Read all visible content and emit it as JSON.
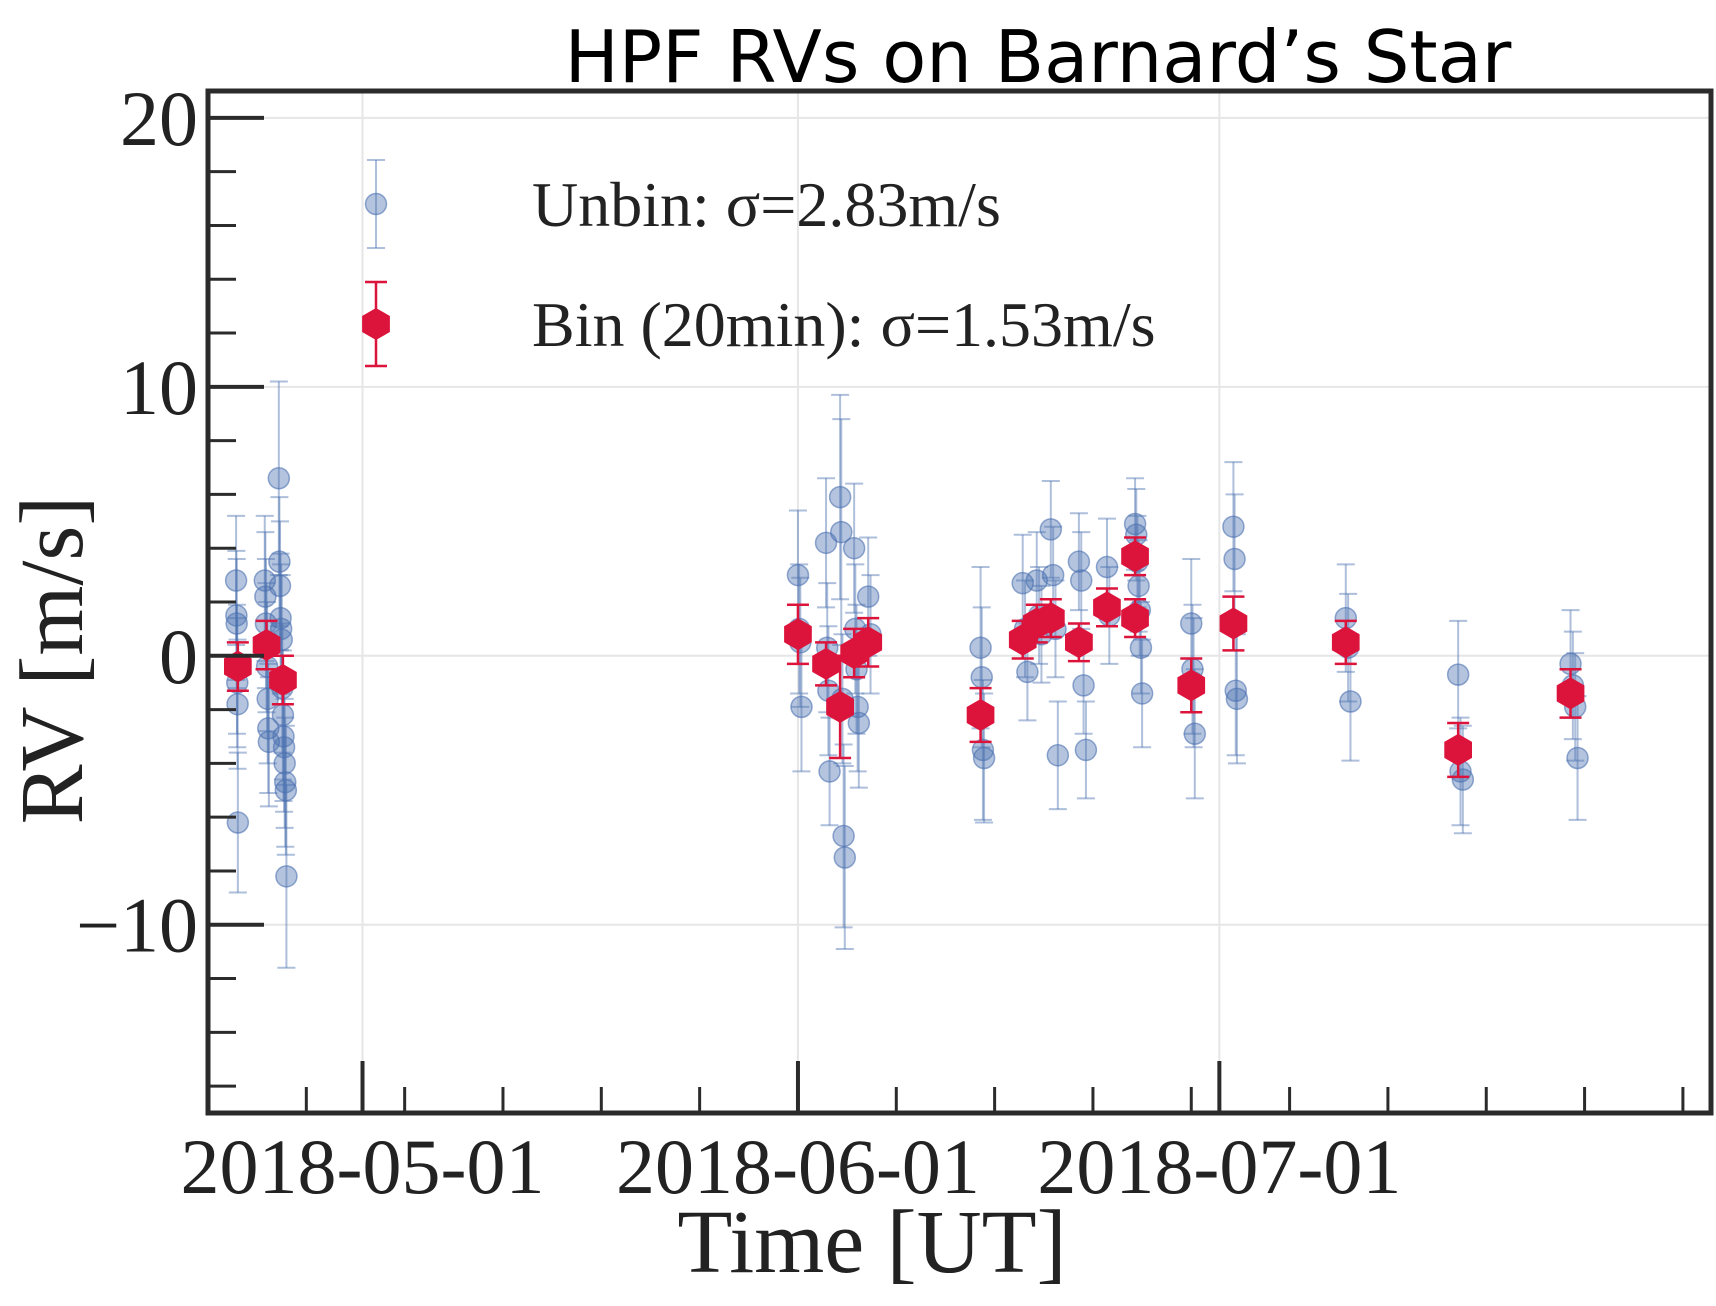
{
  "chart_data": {
    "type": "scatter",
    "title": "HPF RVs on Barnard’s Star",
    "xlabel": "Time [UT]",
    "ylabel": "RV [m/s]",
    "x_type": "date",
    "xlim": [
      "2018-04-20",
      "2018-08-05"
    ],
    "ylim": [
      -17,
      21
    ],
    "grid": true,
    "legend_position": "top-left",
    "x_ticks": [
      "2018-05-01",
      "2018-06-01",
      "2018-07-01"
    ],
    "y_ticks": [
      20,
      10,
      0,
      -10
    ],
    "y_tick_labels": [
      "20",
      "10",
      "0",
      "−10"
    ],
    "x_minor_ticks": [
      "2018-04-20",
      "2018-04-27",
      "2018-05-04",
      "2018-05-11",
      "2018-05-18",
      "2018-05-25",
      "2018-06-08",
      "2018-06-15",
      "2018-06-22",
      "2018-06-29",
      "2018-07-06",
      "2018-07-13",
      "2018-07-20",
      "2018-07-27",
      "2018-08-03"
    ],
    "colors": {
      "unbinned": "#4c72b0",
      "binned": "#dc143c",
      "frame": "#2b2b2b",
      "grid": "#e6e6e6"
    },
    "legend": [
      {
        "label": "Unbin: σ=2.83m/s",
        "marker": "circle"
      },
      {
        "label": "Bin (20min): σ=1.53m/s",
        "marker": "hexagon"
      }
    ],
    "series": [
      {
        "name": "Unbin: σ=2.83m/s",
        "marker": "circle",
        "points": [
          {
            "x": "2018-04-22 00:00",
            "y": 2.8,
            "err": 2.4
          },
          {
            "x": "2018-04-22 00:30",
            "y": 1.5,
            "err": 2.4
          },
          {
            "x": "2018-04-22 01:00",
            "y": 1.2,
            "err": 2.4
          },
          {
            "x": "2018-04-22 01:30",
            "y": -0.5,
            "err": 2.4
          },
          {
            "x": "2018-04-22 02:00",
            "y": -1.0,
            "err": 2.4
          },
          {
            "x": "2018-04-22 02:30",
            "y": -1.8,
            "err": 2.4
          },
          {
            "x": "2018-04-22 03:00",
            "y": -6.2,
            "err": 2.6
          },
          {
            "x": "2018-04-24 01:00",
            "y": 2.8,
            "err": 2.4
          },
          {
            "x": "2018-04-24 02:00",
            "y": 2.2,
            "err": 2.4
          },
          {
            "x": "2018-04-24 03:00",
            "y": 1.2,
            "err": 2.4
          },
          {
            "x": "2018-04-24 04:00",
            "y": 0.3,
            "err": 2.4
          },
          {
            "x": "2018-04-24 05:00",
            "y": -0.4,
            "err": 2.4
          },
          {
            "x": "2018-04-24 06:00",
            "y": -1.6,
            "err": 2.4
          },
          {
            "x": "2018-04-24 07:00",
            "y": -2.7,
            "err": 2.4
          },
          {
            "x": "2018-04-24 08:00",
            "y": -3.2,
            "err": 2.4
          },
          {
            "x": "2018-04-25 01:00",
            "y": 6.6,
            "err": 3.6
          },
          {
            "x": "2018-04-25 02:00",
            "y": 3.5,
            "err": 2.4
          },
          {
            "x": "2018-04-25 03:00",
            "y": 2.6,
            "err": 2.4
          },
          {
            "x": "2018-04-25 04:00",
            "y": 1.4,
            "err": 2.4
          },
          {
            "x": "2018-04-25 05:00",
            "y": 1.0,
            "err": 2.4
          },
          {
            "x": "2018-04-25 06:00",
            "y": 0.6,
            "err": 2.4
          },
          {
            "x": "2018-04-25 07:00",
            "y": -1.2,
            "err": 2.4
          },
          {
            "x": "2018-04-25 08:00",
            "y": -2.2,
            "err": 2.4
          },
          {
            "x": "2018-04-25 09:00",
            "y": -3.0,
            "err": 2.4
          },
          {
            "x": "2018-04-25 10:00",
            "y": -3.4,
            "err": 2.4
          },
          {
            "x": "2018-04-25 11:00",
            "y": -4.0,
            "err": 2.4
          },
          {
            "x": "2018-04-25 12:00",
            "y": -4.7,
            "err": 2.4
          },
          {
            "x": "2018-04-25 13:00",
            "y": -5.0,
            "err": 2.4
          },
          {
            "x": "2018-04-25 14:00",
            "y": -8.2,
            "err": 3.4
          },
          {
            "x": "2018-06-01 00:00",
            "y": 3.0,
            "err": 2.4
          },
          {
            "x": "2018-06-01 02:00",
            "y": 1.0,
            "err": 2.4
          },
          {
            "x": "2018-06-01 04:00",
            "y": 0.5,
            "err": 2.4
          },
          {
            "x": "2018-06-01 06:00",
            "y": -1.9,
            "err": 2.4
          },
          {
            "x": "2018-06-03 00:00",
            "y": 4.2,
            "err": 2.4
          },
          {
            "x": "2018-06-03 02:00",
            "y": 0.3,
            "err": 2.4
          },
          {
            "x": "2018-06-03 04:00",
            "y": -1.3,
            "err": 2.4
          },
          {
            "x": "2018-06-03 06:00",
            "y": -4.3,
            "err": 2.0
          },
          {
            "x": "2018-06-04 00:00",
            "y": 5.9,
            "err": 3.8
          },
          {
            "x": "2018-06-04 02:00",
            "y": 4.6,
            "err": 4.2
          },
          {
            "x": "2018-06-04 04:00",
            "y": -1.6,
            "err": 2.4
          },
          {
            "x": "2018-06-04 06:00",
            "y": -6.7,
            "err": 3.4
          },
          {
            "x": "2018-06-04 08:00",
            "y": -7.5,
            "err": 3.4
          },
          {
            "x": "2018-06-05 00:00",
            "y": 4.0,
            "err": 2.4
          },
          {
            "x": "2018-06-05 02:00",
            "y": 1.0,
            "err": 2.4
          },
          {
            "x": "2018-06-05 04:00",
            "y": -0.5,
            "err": 2.4
          },
          {
            "x": "2018-06-05 06:00",
            "y": -1.9,
            "err": 2.4
          },
          {
            "x": "2018-06-05 08:00",
            "y": -2.5,
            "err": 2.4
          },
          {
            "x": "2018-06-06 00:00",
            "y": 2.2,
            "err": 2.2
          },
          {
            "x": "2018-06-06 04:00",
            "y": 0.8,
            "err": 2.2
          },
          {
            "x": "2018-06-14 00:00",
            "y": 0.3,
            "err": 3.0
          },
          {
            "x": "2018-06-14 02:00",
            "y": -0.8,
            "err": 2.6
          },
          {
            "x": "2018-06-14 04:00",
            "y": -3.5,
            "err": 2.6
          },
          {
            "x": "2018-06-14 06:00",
            "y": -3.8,
            "err": 2.4
          },
          {
            "x": "2018-06-17 00:00",
            "y": 2.7,
            "err": 1.8
          },
          {
            "x": "2018-06-17 04:00",
            "y": 1.0,
            "err": 1.8
          },
          {
            "x": "2018-06-17 08:00",
            "y": -0.6,
            "err": 1.8
          },
          {
            "x": "2018-06-18 00:00",
            "y": 2.8,
            "err": 1.8
          },
          {
            "x": "2018-06-18 04:00",
            "y": 1.5,
            "err": 1.8
          },
          {
            "x": "2018-06-18 08:00",
            "y": 0.8,
            "err": 1.8
          },
          {
            "x": "2018-06-19 00:00",
            "y": 4.7,
            "err": 1.8
          },
          {
            "x": "2018-06-19 04:00",
            "y": 3.0,
            "err": 1.8
          },
          {
            "x": "2018-06-19 08:00",
            "y": 1.0,
            "err": 1.8
          },
          {
            "x": "2018-06-19 12:00",
            "y": -3.7,
            "err": 2.0
          },
          {
            "x": "2018-06-21 00:00",
            "y": 3.5,
            "err": 1.8
          },
          {
            "x": "2018-06-21 04:00",
            "y": 2.8,
            "err": 1.8
          },
          {
            "x": "2018-06-21 08:00",
            "y": -1.1,
            "err": 1.8
          },
          {
            "x": "2018-06-21 12:00",
            "y": -3.5,
            "err": 1.8
          },
          {
            "x": "2018-06-23 00:00",
            "y": 3.3,
            "err": 1.8
          },
          {
            "x": "2018-06-23 04:00",
            "y": 1.5,
            "err": 1.8
          },
          {
            "x": "2018-06-25 00:00",
            "y": 4.9,
            "err": 1.7
          },
          {
            "x": "2018-06-25 02:00",
            "y": 4.5,
            "err": 1.7
          },
          {
            "x": "2018-06-25 04:00",
            "y": 3.5,
            "err": 1.7
          },
          {
            "x": "2018-06-25 06:00",
            "y": 2.6,
            "err": 1.7
          },
          {
            "x": "2018-06-25 08:00",
            "y": 1.7,
            "err": 1.7
          },
          {
            "x": "2018-06-25 10:00",
            "y": 0.3,
            "err": 1.7
          },
          {
            "x": "2018-06-25 12:00",
            "y": -1.4,
            "err": 2.0
          },
          {
            "x": "2018-06-29 00:00",
            "y": 1.2,
            "err": 2.4
          },
          {
            "x": "2018-06-29 02:00",
            "y": -0.5,
            "err": 2.4
          },
          {
            "x": "2018-06-29 04:00",
            "y": -1.0,
            "err": 2.4
          },
          {
            "x": "2018-06-29 06:00",
            "y": -2.9,
            "err": 2.4
          },
          {
            "x": "2018-07-02 00:00",
            "y": 4.8,
            "err": 2.4
          },
          {
            "x": "2018-07-02 02:00",
            "y": 3.6,
            "err": 2.4
          },
          {
            "x": "2018-07-02 04:00",
            "y": -1.3,
            "err": 2.4
          },
          {
            "x": "2018-07-02 06:00",
            "y": -1.6,
            "err": 2.4
          },
          {
            "x": "2018-07-10 00:00",
            "y": 1.4,
            "err": 2.0
          },
          {
            "x": "2018-07-10 04:00",
            "y": 0.3,
            "err": 2.0
          },
          {
            "x": "2018-07-10 08:00",
            "y": -1.7,
            "err": 2.2
          },
          {
            "x": "2018-07-18 00:00",
            "y": -0.7,
            "err": 2.0
          },
          {
            "x": "2018-07-18 04:00",
            "y": -4.3,
            "err": 2.0
          },
          {
            "x": "2018-07-18 08:00",
            "y": -4.6,
            "err": 2.0
          },
          {
            "x": "2018-07-26 00:00",
            "y": -0.3,
            "err": 2.0
          },
          {
            "x": "2018-07-26 04:00",
            "y": -1.1,
            "err": 2.0
          },
          {
            "x": "2018-07-26 08:00",
            "y": -1.9,
            "err": 2.0
          },
          {
            "x": "2018-07-26 12:00",
            "y": -3.8,
            "err": 2.3
          }
        ]
      },
      {
        "name": "Bin (20min): σ=1.53m/s",
        "marker": "hexagon",
        "points": [
          {
            "x": "2018-04-22 03:00",
            "y": -0.4,
            "err": 0.9
          },
          {
            "x": "2018-04-24 04:00",
            "y": 0.4,
            "err": 0.9
          },
          {
            "x": "2018-04-25 08:00",
            "y": -0.9,
            "err": 0.9
          },
          {
            "x": "2018-06-01 00:00",
            "y": 0.8,
            "err": 1.1
          },
          {
            "x": "2018-06-03 00:00",
            "y": -0.3,
            "err": 0.8
          },
          {
            "x": "2018-06-04 00:00",
            "y": -1.9,
            "err": 1.9
          },
          {
            "x": "2018-06-05 00:00",
            "y": 0.1,
            "err": 0.9
          },
          {
            "x": "2018-06-06 00:00",
            "y": 0.5,
            "err": 0.9
          },
          {
            "x": "2018-06-14 00:00",
            "y": -2.2,
            "err": 1.0
          },
          {
            "x": "2018-06-17 00:00",
            "y": 0.6,
            "err": 0.7
          },
          {
            "x": "2018-06-18 00:00",
            "y": 1.2,
            "err": 0.7
          },
          {
            "x": "2018-06-19 00:00",
            "y": 1.4,
            "err": 0.7
          },
          {
            "x": "2018-06-21 00:00",
            "y": 0.5,
            "err": 0.7
          },
          {
            "x": "2018-06-23 00:00",
            "y": 1.8,
            "err": 0.7
          },
          {
            "x": "2018-06-25 00:00",
            "y": 3.7,
            "err": 0.7
          },
          {
            "x": "2018-06-25 00:00",
            "y": 1.4,
            "err": 0.7
          },
          {
            "x": "2018-06-29 00:00",
            "y": -1.1,
            "err": 1.0
          },
          {
            "x": "2018-07-02 00:00",
            "y": 1.2,
            "err": 1.0
          },
          {
            "x": "2018-07-10 00:00",
            "y": 0.5,
            "err": 0.8
          },
          {
            "x": "2018-07-18 00:00",
            "y": -3.5,
            "err": 1.0
          },
          {
            "x": "2018-07-26 00:00",
            "y": -1.4,
            "err": 0.9
          }
        ]
      }
    ]
  }
}
